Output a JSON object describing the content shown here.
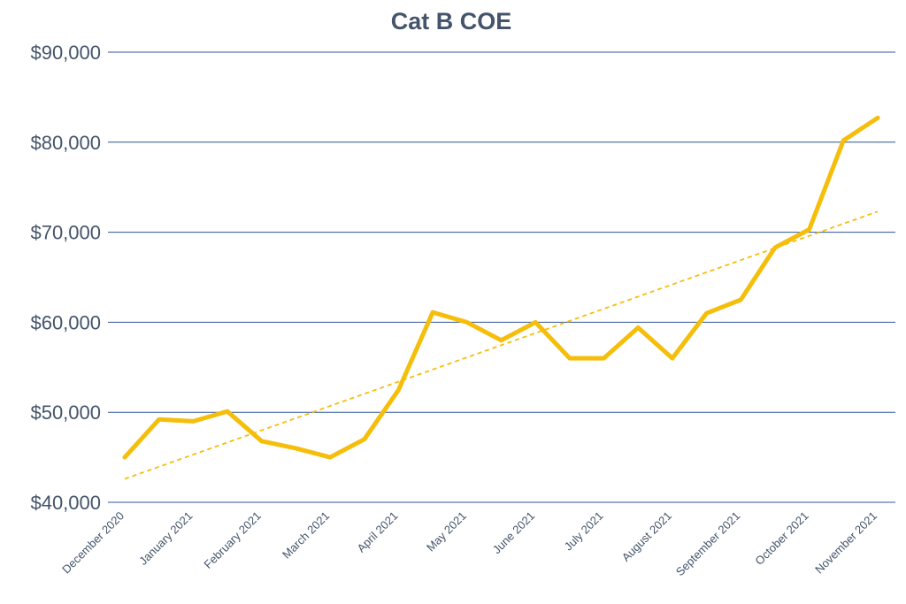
{
  "chart_data": {
    "type": "line",
    "title": "Cat B COE",
    "xlabel": "",
    "ylabel": "",
    "ylim": [
      40000,
      90000
    ],
    "yticks": [
      40000,
      50000,
      60000,
      70000,
      80000,
      90000
    ],
    "ytick_labels": [
      "$40,000",
      "$50,000",
      "$60,000",
      "$70,000",
      "$80,000",
      "$90,000"
    ],
    "grid": true,
    "x_tick_labels": [
      "December 2020",
      "January 2021",
      "February 2021",
      "March 2021",
      "April 2021",
      "May 2021",
      "June 2021",
      "July 2021",
      "August 2021",
      "September 2021",
      "October 2021",
      "November 2021"
    ],
    "series": [
      {
        "name": "Cat B COE",
        "values": [
          45000,
          49200,
          49000,
          50100,
          46800,
          46000,
          45000,
          47000,
          52500,
          61100,
          60000,
          58000,
          60000,
          56000,
          56000,
          59400,
          56000,
          61000,
          62500,
          68300,
          70300,
          80200,
          82700
        ]
      }
    ],
    "trendline": {
      "name": "Linear trend",
      "start": 42600,
      "end": 72300
    },
    "colors": {
      "line": "#F5BE0B",
      "trend": "#F5BE0B",
      "grid": "#2F5597",
      "text": "#44546A"
    }
  }
}
